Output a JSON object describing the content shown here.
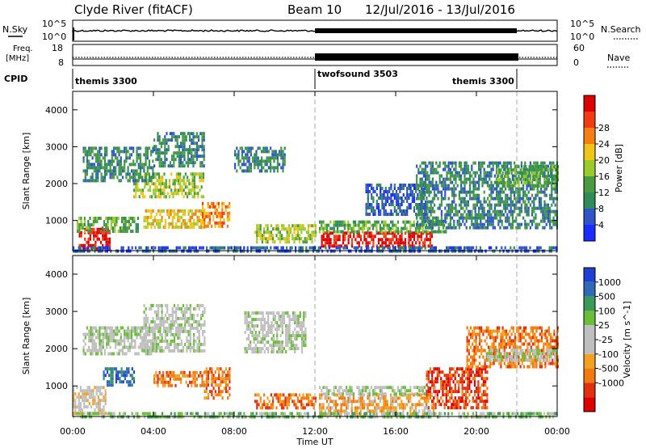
{
  "header": {
    "radar": "Clyde River (fitACF)",
    "beam": "Beam 10",
    "date_range": "12/Jul/2016 - 13/Jul/2016"
  },
  "nsky_panel": {
    "left_label": "N.Sky",
    "right_label": "N.Search",
    "left_ticks": [
      "10^5",
      "10^0"
    ],
    "right_ticks": [
      "10^5",
      "10^0"
    ]
  },
  "freq_panel": {
    "left_label_1": "Freq.",
    "left_label_2": "[MHz]",
    "right_label": "Nave",
    "left_ticks": [
      "18",
      "8"
    ],
    "right_ticks": [
      "60",
      "0"
    ]
  },
  "cpid": {
    "label": "CPID",
    "segments": [
      {
        "name": "themis 3300",
        "start_hour": 0,
        "end_hour": 12
      },
      {
        "name": "twofsound 3503",
        "start_hour": 12,
        "end_hour": 22
      },
      {
        "name": "themis 3300",
        "start_hour": 22,
        "end_hour": 24
      }
    ]
  },
  "colors": {
    "power": [
      "#1a2cff",
      "#2f55c8",
      "#2f8c5a",
      "#4a9a40",
      "#9acb2c",
      "#f0c418",
      "#f57f12",
      "#f03c10",
      "#dd0000"
    ],
    "velocity": [
      "#1f3fd0",
      "#2f6ab8",
      "#3a9a58",
      "#6cbe3a",
      "#bfbfbf",
      "#bfbfbf",
      "#f3a020",
      "#f07a10",
      "#e03010",
      "#dd0000"
    ]
  },
  "chart_data": [
    {
      "type": "heatmap",
      "panel": "power",
      "ylabel": "Slant Range [km]",
      "xlim_hours": [
        0,
        24
      ],
      "ylim": [
        180,
        4500
      ],
      "yticks": [
        1000,
        2000,
        3000,
        4000
      ],
      "colorbar": {
        "label": "Power [dB]",
        "range": [
          0,
          32
        ],
        "ticks": [
          "4",
          "8",
          "12",
          "16",
          "20",
          "24",
          "28"
        ]
      },
      "regions": [
        {
          "t0": 0.3,
          "t1": 1.8,
          "r0": 250,
          "r1": 800,
          "level": 8
        },
        {
          "t0": 0.2,
          "t1": 3.2,
          "r0": 700,
          "r1": 1100,
          "level": 3
        },
        {
          "t0": 3.5,
          "t1": 6.5,
          "r0": 800,
          "r1": 1300,
          "level": 5
        },
        {
          "t0": 6.4,
          "t1": 7.8,
          "r0": 800,
          "r1": 1500,
          "level": 6
        },
        {
          "t0": 3.0,
          "t1": 6.5,
          "r0": 1600,
          "r1": 2300,
          "level": 4
        },
        {
          "t0": 0.5,
          "t1": 4.0,
          "r0": 2100,
          "r1": 3000,
          "level": 2
        },
        {
          "t0": 4.0,
          "t1": 6.5,
          "r0": 2500,
          "r1": 3400,
          "level": 2
        },
        {
          "t0": 8.0,
          "t1": 10.5,
          "r0": 2300,
          "r1": 3000,
          "level": 2
        },
        {
          "t0": 9.0,
          "t1": 12.0,
          "r0": 400,
          "r1": 900,
          "level": 4
        },
        {
          "t0": 12.3,
          "t1": 17.8,
          "r0": 300,
          "r1": 700,
          "level": 8
        },
        {
          "t0": 12.2,
          "t1": 18.5,
          "r0": 700,
          "r1": 1000,
          "level": 3
        },
        {
          "t0": 14.5,
          "t1": 17.5,
          "r0": 1200,
          "r1": 2000,
          "level": 1
        },
        {
          "t0": 17.0,
          "t1": 24.0,
          "r0": 800,
          "r1": 2600,
          "level": 2
        },
        {
          "t0": 21.0,
          "t1": 24.0,
          "r0": 1900,
          "r1": 2500,
          "level": 3
        },
        {
          "t0": 0.0,
          "t1": 24.0,
          "r0": 180,
          "r1": 300,
          "level": 1
        }
      ]
    },
    {
      "type": "heatmap",
      "panel": "velocity",
      "ylabel": "Slant Range [km]",
      "xlabel": "Time UT",
      "xlim_hours": [
        0,
        24
      ],
      "xticks": [
        "00:00",
        "04:00",
        "08:00",
        "12:00",
        "16:00",
        "20:00",
        "00:00"
      ],
      "ylim": [
        180,
        4500
      ],
      "yticks": [
        1000,
        2000,
        3000,
        4000
      ],
      "colorbar": {
        "label": "Velocity [m s^-1]",
        "ticks": [
          "1000",
          "500",
          "100",
          "25",
          "-25",
          "-100",
          "-500",
          "-1000"
        ]
      },
      "regions": [
        {
          "t0": 0.0,
          "t1": 1.6,
          "r0": 250,
          "r1": 1000,
          "level": 5
        },
        {
          "t0": 1.5,
          "t1": 3.0,
          "r0": 1000,
          "r1": 1500,
          "level": 1
        },
        {
          "t0": 0.5,
          "t1": 4.0,
          "r0": 1900,
          "r1": 2600,
          "level": 4
        },
        {
          "t0": 3.5,
          "t1": 6.5,
          "r0": 1900,
          "r1": 3200,
          "level": 4
        },
        {
          "t0": 4.0,
          "t1": 6.5,
          "r0": 1000,
          "r1": 1400,
          "level": 7
        },
        {
          "t0": 6.5,
          "t1": 7.8,
          "r0": 700,
          "r1": 1500,
          "level": 7
        },
        {
          "t0": 8.5,
          "t1": 11.5,
          "r0": 1900,
          "r1": 3000,
          "level": 4
        },
        {
          "t0": 9.0,
          "t1": 12.0,
          "r0": 400,
          "r1": 800,
          "level": 7
        },
        {
          "t0": 12.2,
          "t1": 18.0,
          "r0": 250,
          "r1": 800,
          "level": 6
        },
        {
          "t0": 12.2,
          "t1": 18.0,
          "r0": 750,
          "r1": 1000,
          "level": 4
        },
        {
          "t0": 17.5,
          "t1": 20.5,
          "r0": 400,
          "r1": 1500,
          "level": 8
        },
        {
          "t0": 19.5,
          "t1": 24.0,
          "r0": 1500,
          "r1": 2600,
          "level": 7
        },
        {
          "t0": 20.5,
          "t1": 24.0,
          "r0": 1700,
          "r1": 2000,
          "level": 4
        },
        {
          "t0": 0.0,
          "t1": 24.0,
          "r0": 180,
          "r1": 300,
          "level": 3
        }
      ]
    }
  ]
}
